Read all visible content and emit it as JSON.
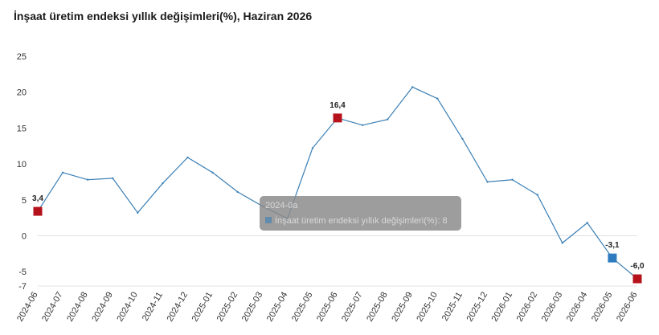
{
  "chart_data": {
    "type": "line",
    "title": "İnşaat üretim endeksi yıllık değişimleri(%), Haziran 2026",
    "xlabel": "",
    "ylabel": "",
    "ylim": [
      -7,
      25
    ],
    "yticks": [
      "25",
      "20",
      "15",
      "10",
      "5",
      "0",
      "-5",
      "-7"
    ],
    "grid": false,
    "legend": "none",
    "categories": [
      "2024-06",
      "2024-07",
      "2024-08",
      "2024-09",
      "2024-10",
      "2024-11",
      "2024-12",
      "2025-01",
      "2025-02",
      "2025-03",
      "2025-04",
      "2025-05",
      "2025-06",
      "2025-07",
      "2025-08",
      "2025-09",
      "2025-10",
      "2025-11",
      "2025-12",
      "2026-01",
      "2026-02",
      "2026-03",
      "2026-04",
      "2026-05",
      "2026-06"
    ],
    "series": [
      {
        "color": "#3a7fb5",
        "values": [
          3.4,
          8.8,
          7.8,
          8.0,
          3.2,
          7.3,
          10.9,
          8.8,
          6.1,
          4.1,
          2.4,
          12.2,
          16.4,
          15.4,
          16.2,
          20.7,
          19.1,
          13.5,
          7.5,
          7.8,
          5.7,
          -1.0,
          1.8,
          -3.1,
          -6.0
        ]
      }
    ],
    "highlighted_points": [
      {
        "index": 0,
        "label": "3,4",
        "color": "#b5121b"
      },
      {
        "index": 12,
        "label": "16,4",
        "color": "#b5121b"
      },
      {
        "index": 23,
        "label": "-3,1",
        "color": "#2f7bbf"
      },
      {
        "index": 24,
        "label": "-6,0",
        "color": "#b5121b"
      }
    ],
    "tooltip": {
      "title": "2024-0a",
      "text": "İnşaat üretim endeksi yıllık değişimleri(%): 8"
    }
  }
}
